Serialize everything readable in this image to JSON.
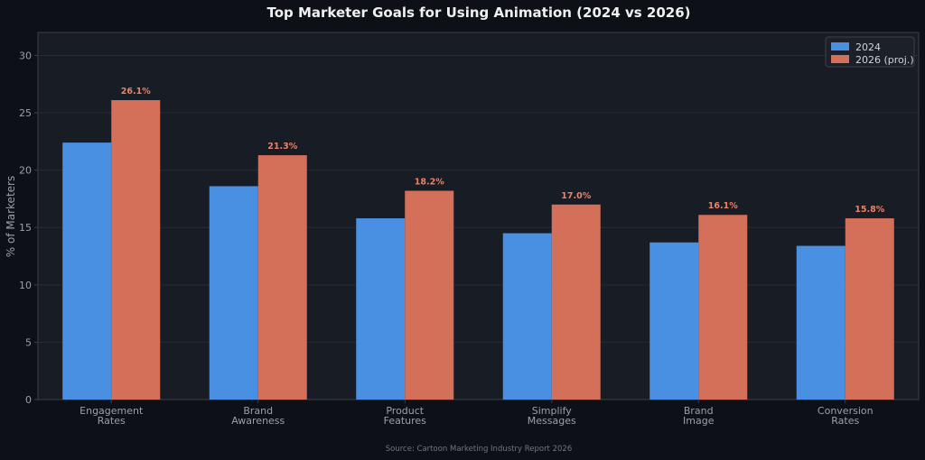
{
  "chart_data": {
    "type": "bar",
    "title": "Top Marketer Goals for Using Animation (2024 vs 2026)",
    "ylabel": "% of Marketers",
    "xlabel": "",
    "ylim": [
      0,
      32
    ],
    "yticks": [
      0,
      5,
      10,
      15,
      20,
      25,
      30
    ],
    "grid": true,
    "legend_position": "top-right",
    "categories": [
      [
        "Engagement",
        "Rates"
      ],
      [
        "Brand",
        "Awareness"
      ],
      [
        "Product",
        "Features"
      ],
      [
        "Simplify",
        "Messages"
      ],
      [
        "Brand",
        "Image"
      ],
      [
        "Conversion",
        "Rates"
      ]
    ],
    "series": [
      {
        "name": "2024",
        "color": "#4a90e2",
        "values": [
          22.4,
          18.6,
          15.8,
          14.5,
          13.7,
          13.4
        ],
        "show_labels": false
      },
      {
        "name": "2026 (proj.)",
        "color": "#d4705a",
        "values": [
          26.1,
          21.3,
          18.2,
          17.0,
          16.1,
          15.8
        ],
        "show_labels": true,
        "data_labels": [
          "26.1%",
          "21.3%",
          "18.2%",
          "17.0%",
          "16.1%",
          "15.8%"
        ]
      }
    ],
    "source": "Source: Cartoon Marketing Industry Report 2026",
    "colors": {
      "background": "#0d1117",
      "plot_background": "#181c24",
      "grid": "#262b34",
      "axis": "#3a404a",
      "label_color": "#e8836a"
    }
  }
}
